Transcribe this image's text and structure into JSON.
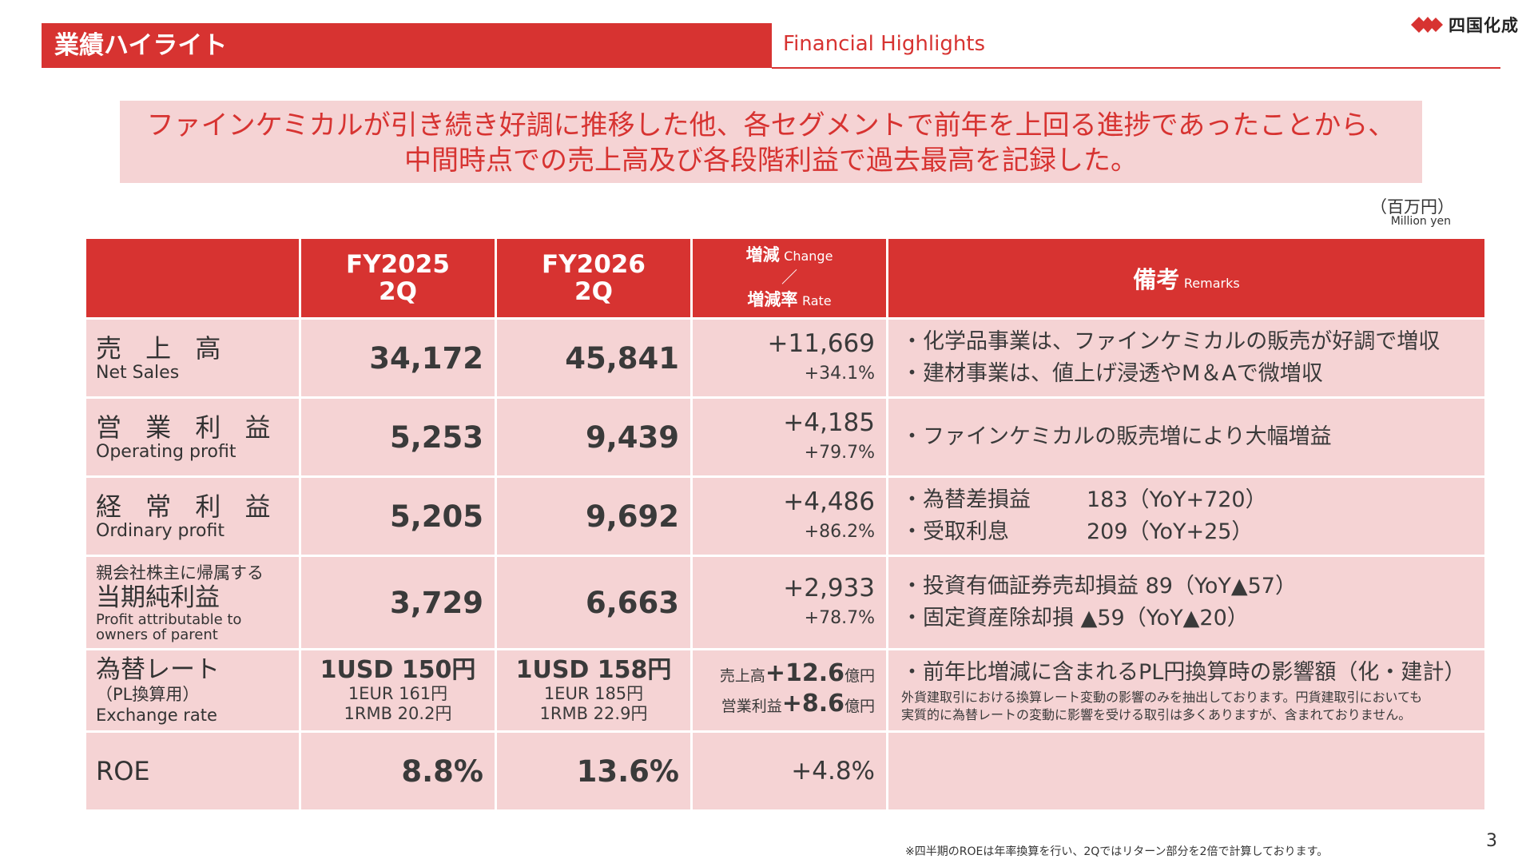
{
  "header": {
    "title_jp": "業績ハイライト",
    "title_en": "Financial Highlights",
    "logo_text": "四国化成"
  },
  "summary": {
    "line1": "ファインケミカルが引き続き好調に推移した他、各セグメントで前年を上回る進捗であったことから、",
    "line2": "中間時点での売上高及び各段階利益で過去最高を記録した。"
  },
  "unit": {
    "jp": "（百万円）",
    "en": "Million yen"
  },
  "table": {
    "headers": {
      "fy2025_line1": "FY2025",
      "fy2025_line2": "2Q",
      "fy2026_line1": "FY2026",
      "fy2026_line2": "2Q",
      "change_jp": "増減",
      "change_en": "Change",
      "slash": "／",
      "rate_jp": "増減率",
      "rate_en": "Rate",
      "remarks_jp": "備考",
      "remarks_en": "Remarks"
    },
    "rows": {
      "net_sales": {
        "label_jp": "売 上 高",
        "label_en": "Net Sales",
        "fy2025": "34,172",
        "fy2026": "45,841",
        "change": "+11,669",
        "rate": "+34.1%",
        "remarks": [
          "・化学品事業は、ファインケミカルの販売が好調で増収",
          "・建材事業は、値上げ浸透やM＆Aで微増収"
        ]
      },
      "operating_profit": {
        "label_jp": "営 業 利 益",
        "label_en": "Operating profit",
        "fy2025": "5,253",
        "fy2026": "9,439",
        "change": "+4,185",
        "rate": "+79.7%",
        "remarks": [
          "・ファインケミカルの販売増により大幅増益"
        ]
      },
      "ordinary_profit": {
        "label_jp": "経 常 利 益",
        "label_en": "Ordinary profit",
        "fy2025": "5,205",
        "fy2026": "9,692",
        "change": "+4,486",
        "rate": "+86.2%",
        "remarks": [
          {
            "item": "・為替差損益",
            "value": "183（YoY+720）"
          },
          {
            "item": "・受取利息",
            "value": "209（YoY+25）"
          }
        ]
      },
      "net_income": {
        "label_small": "親会社株主に帰属する",
        "label_jp": "当期純利益",
        "label_en1": "Profit attributable to",
        "label_en2": "owners of parent",
        "fy2025": "3,729",
        "fy2026": "6,663",
        "change": "+2,933",
        "rate": "+78.7%",
        "remarks": [
          "・投資有価証券売却損益 89（YoY▲57）",
          "・固定資産除却損 ▲59（YoY▲20）"
        ]
      },
      "exchange_rate": {
        "label_jp": "為替レート",
        "label_sub": "（PL換算用）",
        "label_en": "Exchange rate",
        "fy2025_main": "1USD 150円",
        "fy2025_eur": "1EUR 161円",
        "fy2025_rmb": "1RMB 20.2円",
        "fy2026_main": "1USD 158円",
        "fy2026_eur": "1EUR 185円",
        "fy2026_rmb": "1RMB 22.9円",
        "change_sales_label": "売上高",
        "change_sales_value": "+12.6",
        "change_sales_unit": "億円",
        "change_op_label": "営業利益",
        "change_op_value": "+8.6",
        "change_op_unit": "億円",
        "remark_main": "・前年比増減に含まれるPL円換算時の影響額（化・建計）",
        "remark_note1": "外貨建取引における換算レート変動の影響のみを抽出しております。円貨建取引においても",
        "remark_note2": "実質的に為替レートの変動に影響を受ける取引は多くありますが、含まれておりません。"
      },
      "roe": {
        "label": "ROE",
        "fy2025": "8.8%",
        "fy2026": "13.6%",
        "change": "+4.8%"
      }
    }
  },
  "footnote": "※四半期のROEは年率換算を行い、2Qではリターン部分を2倍で計算しております。",
  "page_number": "3",
  "colors": {
    "brand_red": "#d73331",
    "pink_bg": "#f5d3d4"
  }
}
